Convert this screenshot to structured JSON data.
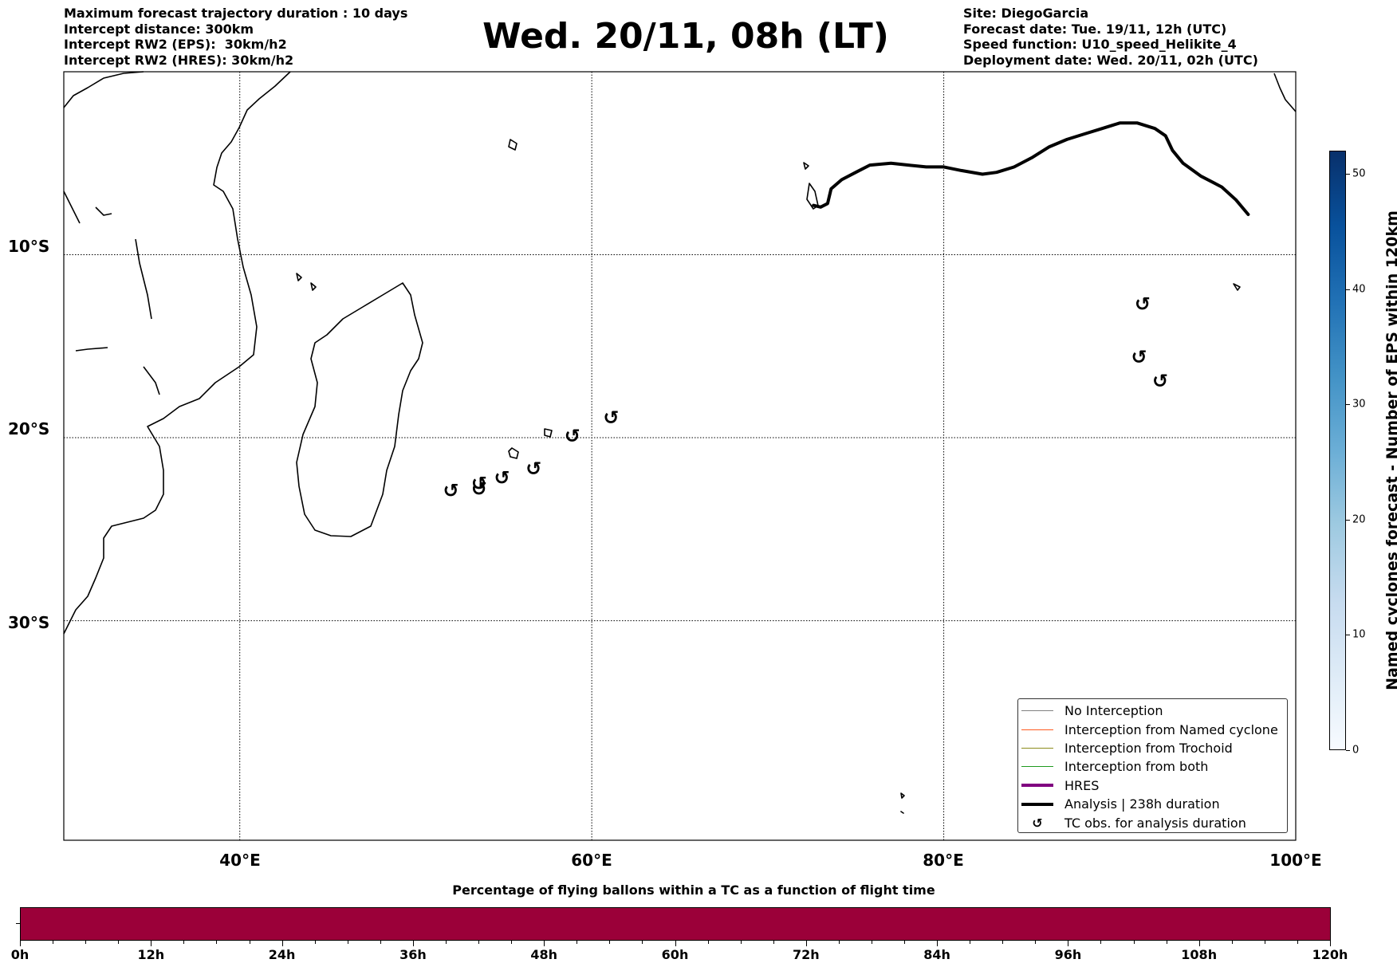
{
  "header": {
    "left_lines": [
      "Maximum forecast trajectory duration : 10 days",
      "Intercept distance: 300km",
      "Intercept RW2 (EPS):  30km/h2",
      "Intercept RW2 (HRES): 30km/h2"
    ],
    "title": "Wed. 20/11, 08h (LT)",
    "right_lines": [
      "Site: DiegoGarcia",
      "Forecast date: Tue. 19/11, 12h (UTC)",
      "Speed function: U10_speed_Helikite_4",
      "Deployment date: Wed. 20/11, 02h (UTC)"
    ]
  },
  "map": {
    "lon_range": [
      30,
      100
    ],
    "lat_range": [
      -42,
      0
    ],
    "lon_grid": [
      40,
      60,
      80
    ],
    "lat_grid": [
      -10,
      -20,
      -30
    ],
    "lon_labels": [
      {
        "lon": 40,
        "text": "40°E"
      },
      {
        "lon": 60,
        "text": "60°E"
      },
      {
        "lon": 80,
        "text": "80°E"
      },
      {
        "lon": 100,
        "text": "100°E"
      }
    ],
    "lat_labels": [
      {
        "lat": -10,
        "text": "10°S"
      },
      {
        "lat": -20,
        "text": "20°S"
      },
      {
        "lat": -30,
        "text": "30°S"
      }
    ],
    "analysis_track": [
      [
        72.6,
        -7.3
      ],
      [
        73.0,
        -7.4
      ],
      [
        73.4,
        -7.2
      ],
      [
        73.6,
        -6.4
      ],
      [
        74.2,
        -5.9
      ],
      [
        75.0,
        -5.5
      ],
      [
        75.8,
        -5.1
      ],
      [
        77.0,
        -5.0
      ],
      [
        78.0,
        -5.1
      ],
      [
        79.0,
        -5.2
      ],
      [
        80.0,
        -5.2
      ],
      [
        81.0,
        -5.4
      ],
      [
        82.2,
        -5.6
      ],
      [
        83.0,
        -5.5
      ],
      [
        84.0,
        -5.2
      ],
      [
        85.0,
        -4.7
      ],
      [
        86.0,
        -4.1
      ],
      [
        87.0,
        -3.7
      ],
      [
        88.0,
        -3.4
      ],
      [
        89.0,
        -3.1
      ],
      [
        90.0,
        -2.8
      ],
      [
        91.0,
        -2.8
      ],
      [
        92.0,
        -3.1
      ],
      [
        92.6,
        -3.5
      ],
      [
        93.0,
        -4.3
      ],
      [
        93.6,
        -5.0
      ],
      [
        94.6,
        -5.7
      ],
      [
        95.8,
        -6.3
      ],
      [
        96.6,
        -7.0
      ],
      [
        97.3,
        -7.8
      ]
    ],
    "tc_obs": [
      [
        52.0,
        -22.9
      ],
      [
        53.6,
        -22.8
      ],
      [
        53.6,
        -22.5
      ],
      [
        54.9,
        -22.2
      ],
      [
        56.7,
        -21.7
      ],
      [
        58.9,
        -19.9
      ],
      [
        61.1,
        -18.9
      ],
      [
        91.3,
        -12.7
      ],
      [
        91.1,
        -15.6
      ],
      [
        92.3,
        -16.9
      ]
    ]
  },
  "legend": {
    "items": [
      {
        "label": "No Interception",
        "color": "#808080",
        "width": 1,
        "kind": "line"
      },
      {
        "label": "Interception from Named cyclone",
        "color": "#ff5a1f",
        "width": 1,
        "kind": "line"
      },
      {
        "label": "Interception from Trochoid",
        "color": "#8c8c1c",
        "width": 1,
        "kind": "line"
      },
      {
        "label": "Interception from both",
        "color": "#1f9a1f",
        "width": 1,
        "kind": "line"
      },
      {
        "label": "HRES",
        "color": "#800080",
        "width": 4,
        "kind": "line"
      },
      {
        "label": "Analysis | 238h duration",
        "color": "#000000",
        "width": 4,
        "kind": "line"
      },
      {
        "label": "TC obs. for analysis duration",
        "symbol": "↺",
        "kind": "symbol"
      }
    ]
  },
  "colorbar": {
    "label": "Named cyclones forecast - Number of EPS within 120km",
    "min": 0,
    "max": 52,
    "ticks": [
      "0",
      "10",
      "20",
      "30",
      "40",
      "50"
    ]
  },
  "flight_time_bar": {
    "title": "Percentage of flying ballons within a TC as a function of flight time",
    "color": "#9b0039",
    "ticks": [
      "0h",
      "12h",
      "24h",
      "36h",
      "48h",
      "60h",
      "72h",
      "84h",
      "96h",
      "108h",
      "120h"
    ]
  }
}
